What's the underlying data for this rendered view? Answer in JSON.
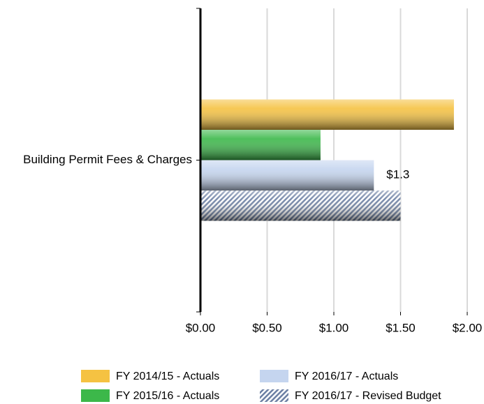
{
  "chart_data": {
    "type": "bar",
    "orientation": "horizontal",
    "categories": [
      "Building Permit Fees & Charges"
    ],
    "series": [
      {
        "name": "FY 2014/15 - Actuals",
        "color": "#f5c242",
        "values": [
          1.9
        ]
      },
      {
        "name": "FY 2015/16 - Actuals",
        "color": "#3cb84a",
        "values": [
          0.9
        ]
      },
      {
        "name": "FY 2016/17 - Actuals",
        "color": "#c5d5ef",
        "values": [
          1.3
        ],
        "value_labels": [
          "$1.3"
        ]
      },
      {
        "name": "FY 2016/17 - Revised Budget",
        "color": "#8fa3c4",
        "values": [
          1.5
        ],
        "hatch": true
      }
    ],
    "xlim": [
      0,
      2
    ],
    "xticks": [
      {
        "value": 0,
        "label": "$0.00"
      },
      {
        "value": 0.5,
        "label": "$0.50"
      },
      {
        "value": 1,
        "label": "$1.00"
      },
      {
        "value": 1.5,
        "label": "$1.50"
      },
      {
        "value": 2,
        "label": "$2.00"
      }
    ],
    "grid": true,
    "legend": "bottom"
  }
}
